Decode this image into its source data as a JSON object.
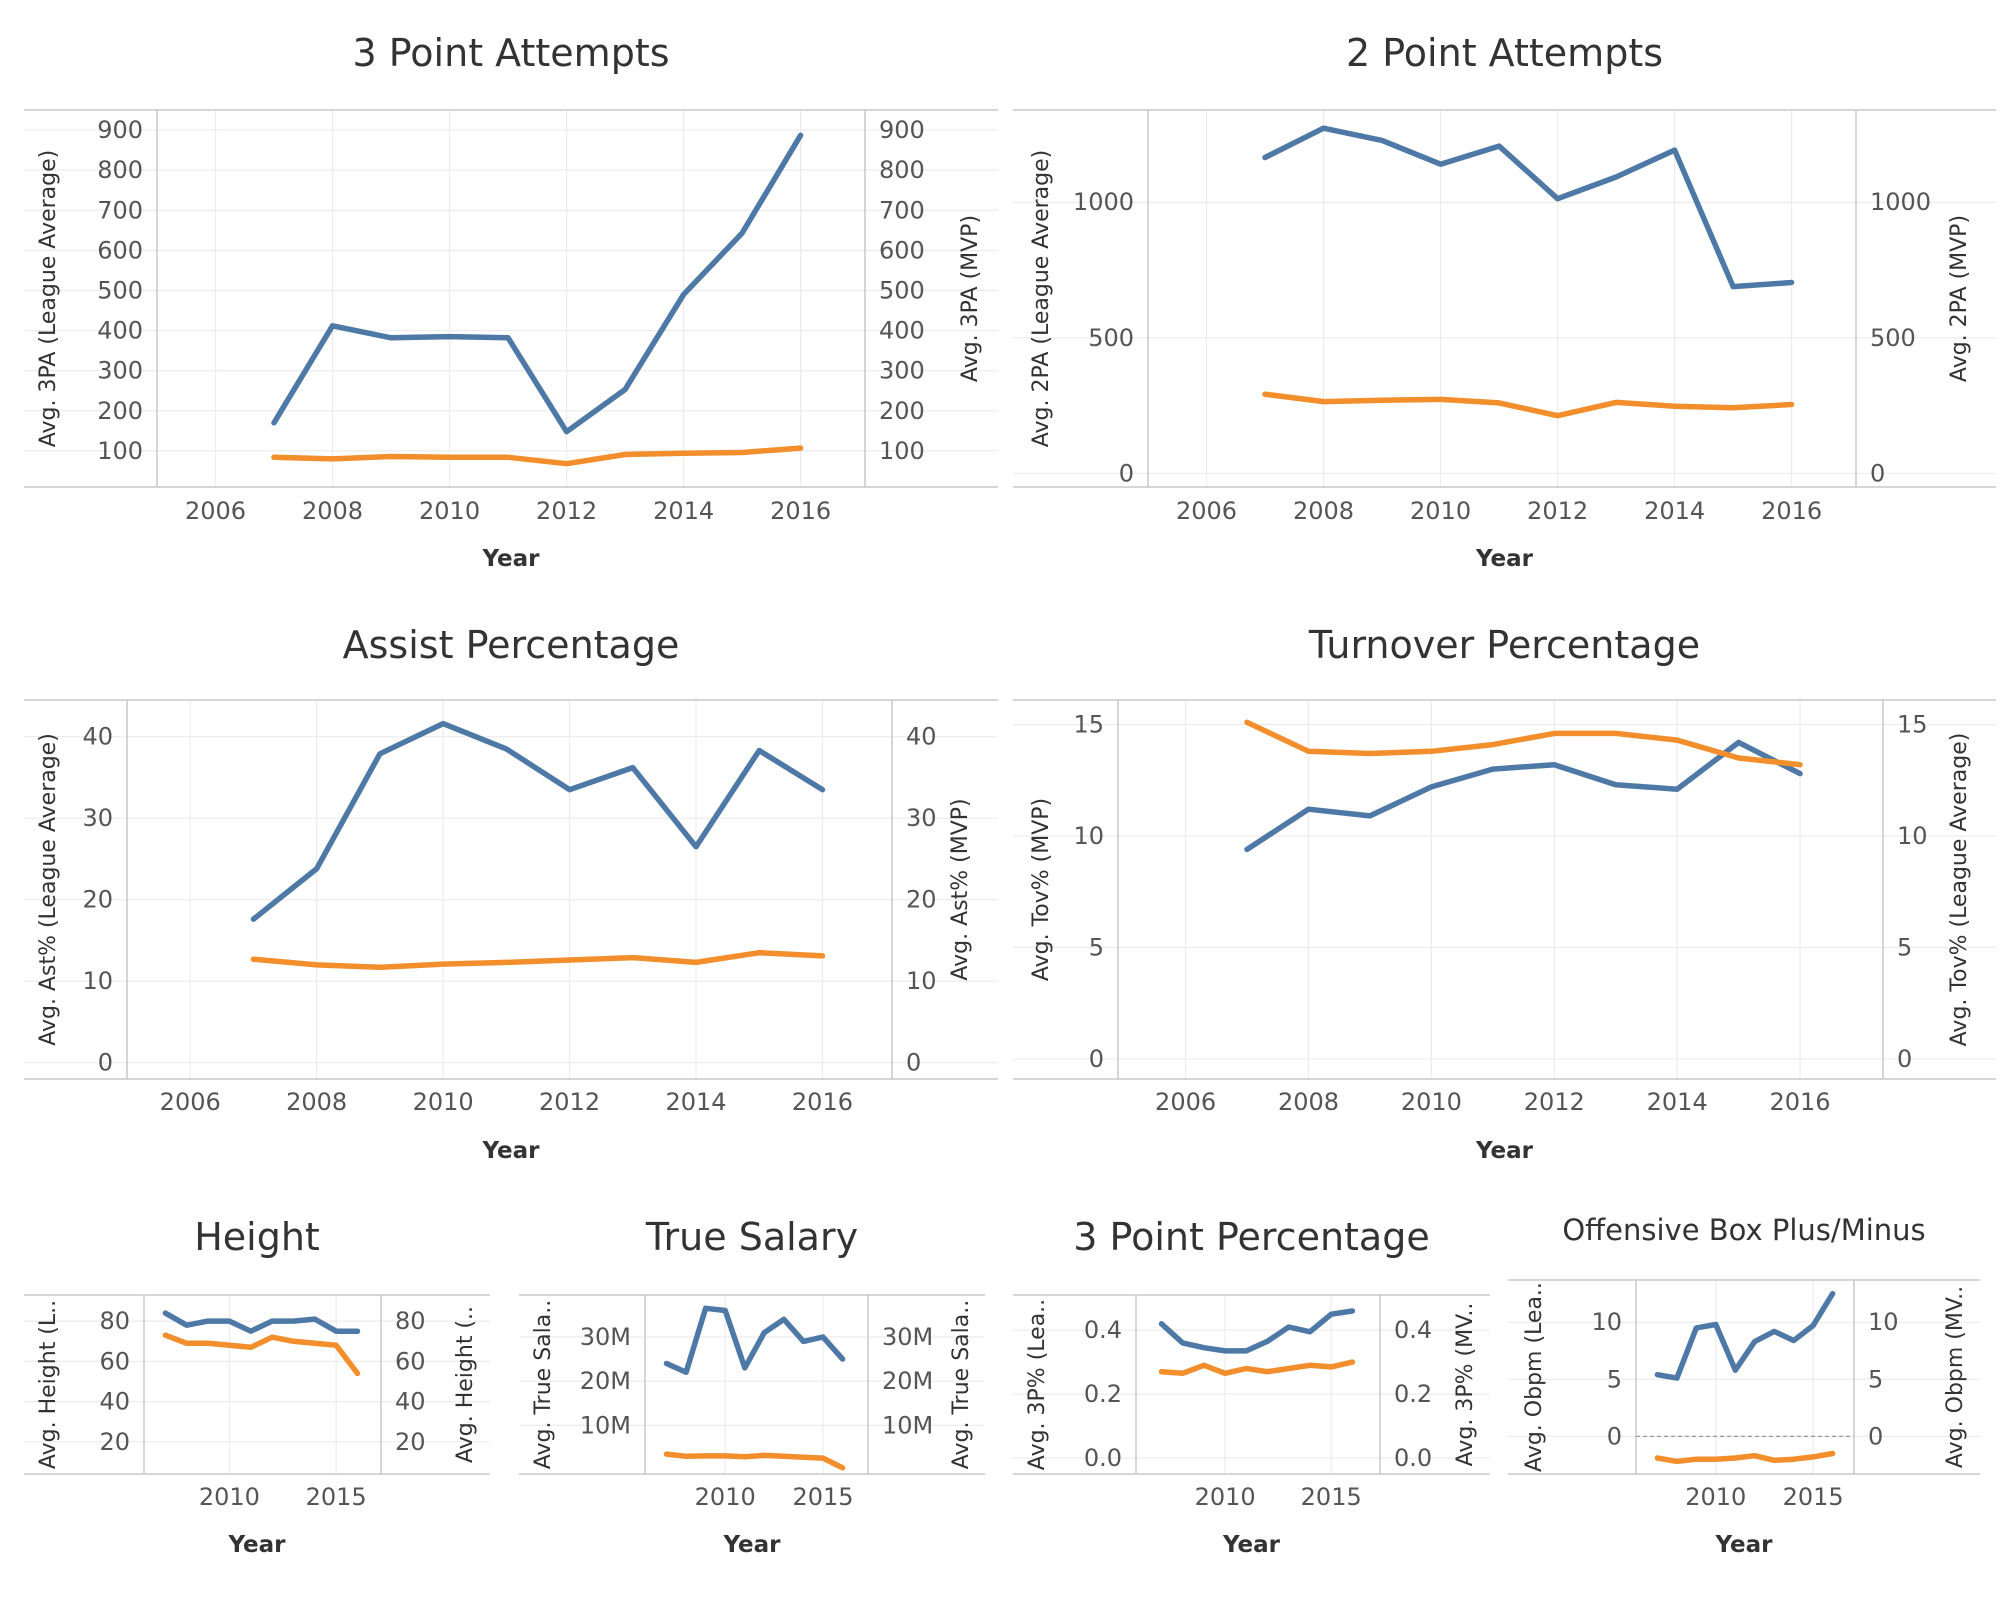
{
  "colors": {
    "blue": "#4e79a7",
    "orange": "#f28e2b",
    "grid": "#ececec",
    "axis": "#c8c8c8"
  },
  "chart_data": [
    {
      "id": "three-point-attempts",
      "type": "line",
      "title": "3 Point Attempts",
      "xlabel": "Year",
      "ylabel_left": "Avg. 3PA (League Average)",
      "ylabel_right": "Avg. 3PA (MVP)",
      "xlim": [
        2005.0,
        2017.1
      ],
      "xticks": [
        2006,
        2008,
        2010,
        2012,
        2014,
        2016
      ],
      "ylim_left": [
        10,
        950
      ],
      "yticks_left": [
        "100",
        "200",
        "300",
        "400",
        "500",
        "600",
        "700",
        "800",
        "900"
      ],
      "yticks_left_values": [
        100,
        200,
        300,
        400,
        500,
        600,
        700,
        800,
        900
      ],
      "ylim_right": [
        10,
        950
      ],
      "yticks_right": [
        "100",
        "200",
        "300",
        "400",
        "500",
        "600",
        "700",
        "800",
        "900"
      ],
      "yticks_right_values": [
        100,
        200,
        300,
        400,
        500,
        600,
        700,
        800,
        900
      ],
      "grid": true,
      "zero_line": false,
      "series": [
        {
          "color": "blue",
          "axis": "left",
          "x": [
            2007,
            2008,
            2009,
            2010,
            2011,
            2012,
            2013,
            2014,
            2015,
            2016
          ],
          "y": [
            170,
            412,
            382,
            385,
            382,
            148,
            253,
            490,
            643,
            887
          ]
        },
        {
          "color": "orange",
          "axis": "left",
          "x": [
            2007,
            2008,
            2009,
            2010,
            2011,
            2012,
            2013,
            2014,
            2015,
            2016
          ],
          "y": [
            84,
            80,
            86,
            84,
            84,
            68,
            91,
            94,
            96,
            107
          ]
        }
      ]
    },
    {
      "id": "two-point-attempts",
      "type": "line",
      "title": "2 Point Attempts",
      "xlabel": "Year",
      "ylabel_left": "Avg. 2PA (League Average)",
      "ylabel_right": "Avg. 2PA (MVP)",
      "xlim": [
        2005.0,
        2017.1
      ],
      "xticks": [
        2006,
        2008,
        2010,
        2012,
        2014,
        2016
      ],
      "ylim_left": [
        -50,
        1340
      ],
      "yticks_left": [
        "0",
        "500",
        "1000"
      ],
      "yticks_left_values": [
        0,
        500,
        1000
      ],
      "ylim_right": [
        -50,
        1340
      ],
      "yticks_right": [
        "0",
        "500",
        "1000"
      ],
      "yticks_right_values": [
        0,
        500,
        1000
      ],
      "grid": true,
      "zero_line": false,
      "series": [
        {
          "color": "blue",
          "axis": "left",
          "x": [
            2007,
            2008,
            2009,
            2010,
            2011,
            2012,
            2013,
            2014,
            2015,
            2016
          ],
          "y": [
            1165,
            1273,
            1228,
            1140,
            1207,
            1013,
            1093,
            1192,
            689,
            704
          ]
        },
        {
          "color": "orange",
          "axis": "left",
          "x": [
            2007,
            2008,
            2009,
            2010,
            2011,
            2012,
            2013,
            2014,
            2015,
            2016
          ],
          "y": [
            292,
            265,
            270,
            273,
            260,
            213,
            262,
            248,
            242,
            254
          ]
        }
      ]
    },
    {
      "id": "assist-percentage",
      "type": "line",
      "title": "Assist Percentage",
      "xlabel": "Year",
      "ylabel_left": "Avg. Ast% (League Average)",
      "ylabel_right": "Avg. Ast% (MVP)",
      "xlim": [
        2005.0,
        2017.1
      ],
      "xticks": [
        2006,
        2008,
        2010,
        2012,
        2014,
        2016
      ],
      "ylim_left": [
        -2,
        44.5
      ],
      "yticks_left": [
        "0",
        "10",
        "20",
        "30",
        "40"
      ],
      "yticks_left_values": [
        0,
        10,
        20,
        30,
        40
      ],
      "ylim_right": [
        -2,
        44.5
      ],
      "yticks_right": [
        "0",
        "10",
        "20",
        "30",
        "40"
      ],
      "yticks_right_values": [
        0,
        10,
        20,
        30,
        40
      ],
      "grid": true,
      "zero_line": false,
      "series": [
        {
          "color": "blue",
          "axis": "left",
          "x": [
            2007,
            2008,
            2009,
            2010,
            2011,
            2012,
            2013,
            2014,
            2015,
            2016
          ],
          "y": [
            17.6,
            23.8,
            37.9,
            41.6,
            38.5,
            33.5,
            36.2,
            26.5,
            38.3,
            33.5
          ]
        },
        {
          "color": "orange",
          "axis": "left",
          "x": [
            2007,
            2008,
            2009,
            2010,
            2011,
            2012,
            2013,
            2014,
            2015,
            2016
          ],
          "y": [
            12.7,
            12,
            11.7,
            12.1,
            12.3,
            12.6,
            12.9,
            12.3,
            13.5,
            13.1
          ]
        }
      ]
    },
    {
      "id": "turnover-percentage",
      "type": "line",
      "title": "Turnover Percentage",
      "xlabel": "Year",
      "ylabel_left": "Avg. Tov% (MVP)",
      "ylabel_right": "Avg. Tov% (League Average)",
      "xlim": [
        2004.9,
        2017.35
      ],
      "xticks": [
        2006,
        2008,
        2010,
        2012,
        2014,
        2016
      ],
      "ylim_left": [
        -0.9,
        16.1
      ],
      "yticks_left": [
        "0",
        "5",
        "10",
        "15"
      ],
      "yticks_left_values": [
        0,
        5,
        10,
        15
      ],
      "ylim_right": [
        -0.9,
        16.1
      ],
      "yticks_right": [
        "0",
        "5",
        "10",
        "15"
      ],
      "yticks_right_values": [
        0,
        5,
        10,
        15
      ],
      "grid": true,
      "zero_line": false,
      "series": [
        {
          "color": "blue",
          "axis": "left",
          "x": [
            2007,
            2008,
            2009,
            2010,
            2011,
            2012,
            2013,
            2014,
            2015,
            2016
          ],
          "y": [
            9.4,
            11.2,
            10.9,
            12.2,
            13,
            13.2,
            12.3,
            12.1,
            14.2,
            12.8
          ]
        },
        {
          "color": "orange",
          "axis": "left",
          "x": [
            2007,
            2008,
            2009,
            2010,
            2011,
            2012,
            2013,
            2014,
            2015,
            2016
          ],
          "y": [
            15.1,
            13.8,
            13.7,
            13.8,
            14.1,
            14.6,
            14.6,
            14.3,
            13.5,
            13.2
          ]
        }
      ]
    },
    {
      "id": "height",
      "type": "line",
      "title": "Height",
      "xlabel": "Year",
      "ylabel_left": "Avg. Height (L..",
      "ylabel_right": "Avg. Height (..",
      "xlim": [
        2006.0,
        2017.1
      ],
      "xticks": [
        2010,
        2015
      ],
      "ylim_left": [
        4,
        93
      ],
      "yticks_left": [
        "20",
        "40",
        "60",
        "80"
      ],
      "yticks_left_values": [
        20,
        40,
        60,
        80
      ],
      "ylim_right": [
        4,
        93
      ],
      "yticks_right": [
        "20",
        "40",
        "60",
        "80"
      ],
      "yticks_right_values": [
        20,
        40,
        60,
        80
      ],
      "grid": true,
      "zero_line": false,
      "series": [
        {
          "color": "blue",
          "axis": "left",
          "x": [
            2007,
            2008,
            2009,
            2010,
            2011,
            2012,
            2013,
            2014,
            2015,
            2016
          ],
          "y": [
            84,
            78,
            80,
            80,
            75,
            80,
            80,
            81,
            75,
            75
          ]
        },
        {
          "color": "orange",
          "axis": "left",
          "x": [
            2007,
            2008,
            2009,
            2010,
            2011,
            2012,
            2013,
            2014,
            2015,
            2016
          ],
          "y": [
            73,
            69,
            69,
            68,
            67,
            72,
            70,
            69,
            68,
            54
          ]
        }
      ]
    },
    {
      "id": "true-salary",
      "type": "line",
      "title": "True Salary",
      "xlabel": "Year",
      "ylabel_left": "Avg. True Sala..",
      "ylabel_right": "Avg. True Sala..",
      "xlim": [
        2005.9,
        2017.3
      ],
      "xticks": [
        2010,
        2015
      ],
      "ylim_left": [
        -1,
        39.5
      ],
      "yticks_left": [
        "10M",
        "20M",
        "30M"
      ],
      "yticks_left_values": [
        10,
        20,
        30
      ],
      "ylim_right": [
        -1,
        39.5
      ],
      "yticks_right": [
        "10M",
        "20M",
        "30M"
      ],
      "yticks_right_values": [
        10,
        20,
        30
      ],
      "grid": true,
      "zero_line": false,
      "series": [
        {
          "color": "blue",
          "axis": "left",
          "x": [
            2007,
            2008,
            2009,
            2010,
            2011,
            2012,
            2013,
            2014,
            2015,
            2016
          ],
          "y": [
            24,
            22,
            36.5,
            36,
            23,
            31,
            34,
            29,
            30,
            25
          ]
        },
        {
          "color": "orange",
          "axis": "left",
          "x": [
            2007,
            2008,
            2009,
            2010,
            2011,
            2012,
            2013,
            2014,
            2015,
            2016
          ],
          "y": [
            3.5,
            3,
            3.1,
            3.1,
            2.9,
            3.2,
            3,
            2.8,
            2.6,
            0.4
          ]
        }
      ]
    },
    {
      "id": "three-point-percentage",
      "type": "line",
      "title": "3 Point Percentage",
      "xlabel": "Year",
      "ylabel_left": "Avg. 3P% (Lea..",
      "ylabel_right": "Avg. 3P% (MV..",
      "xlim": [
        2005.8,
        2017.3
      ],
      "xticks": [
        2010,
        2015
      ],
      "ylim_left": [
        -0.05,
        0.51
      ],
      "yticks_left": [
        "0.0",
        "0.2",
        "0.4"
      ],
      "yticks_left_values": [
        0,
        0.2,
        0.4
      ],
      "ylim_right": [
        -0.05,
        0.51
      ],
      "yticks_right": [
        "0.0",
        "0.2",
        "0.4"
      ],
      "yticks_right_values": [
        0,
        0.2,
        0.4
      ],
      "grid": true,
      "zero_line": false,
      "series": [
        {
          "color": "blue",
          "axis": "left",
          "x": [
            2007,
            2008,
            2009,
            2010,
            2011,
            2012,
            2013,
            2014,
            2015,
            2016
          ],
          "y": [
            0.42,
            0.36,
            0.345,
            0.335,
            0.335,
            0.365,
            0.41,
            0.395,
            0.45,
            0.46
          ]
        },
        {
          "color": "orange",
          "axis": "left",
          "x": [
            2007,
            2008,
            2009,
            2010,
            2011,
            2012,
            2013,
            2014,
            2015,
            2016
          ],
          "y": [
            0.27,
            0.265,
            0.29,
            0.265,
            0.28,
            0.27,
            0.28,
            0.29,
            0.285,
            0.3
          ]
        }
      ]
    },
    {
      "id": "offensive-box-plus-minus",
      "type": "line",
      "title": "Offensive Box Plus/Minus",
      "xlabel": "Year",
      "ylabel_left": "Avg. Obpm (Lea..",
      "ylabel_right": "Avg. Obpm (MV..",
      "xlim": [
        2005.9,
        2017.1
      ],
      "xticks": [
        2010,
        2015
      ],
      "ylim_left": [
        -3.3,
        13.7
      ],
      "yticks_left": [
        "0",
        "5",
        "10"
      ],
      "yticks_left_values": [
        0,
        5,
        10
      ],
      "ylim_right": [
        -3.3,
        13.7
      ],
      "yticks_right": [
        "0",
        "5",
        "10"
      ],
      "yticks_right_values": [
        0,
        5,
        10
      ],
      "grid": true,
      "zero_line": true,
      "series": [
        {
          "color": "blue",
          "axis": "left",
          "x": [
            2007,
            2008,
            2009,
            2010,
            2011,
            2012,
            2013,
            2014,
            2015,
            2016
          ],
          "y": [
            5.4,
            5.1,
            9.5,
            9.8,
            5.8,
            8.3,
            9.2,
            8.4,
            9.7,
            12.5
          ]
        },
        {
          "color": "orange",
          "axis": "left",
          "x": [
            2007,
            2008,
            2009,
            2010,
            2011,
            2012,
            2013,
            2014,
            2015,
            2016
          ],
          "y": [
            -1.9,
            -2.2,
            -2,
            -2,
            -1.9,
            -1.7,
            -2.1,
            -2,
            -1.8,
            -1.5
          ]
        }
      ]
    }
  ]
}
